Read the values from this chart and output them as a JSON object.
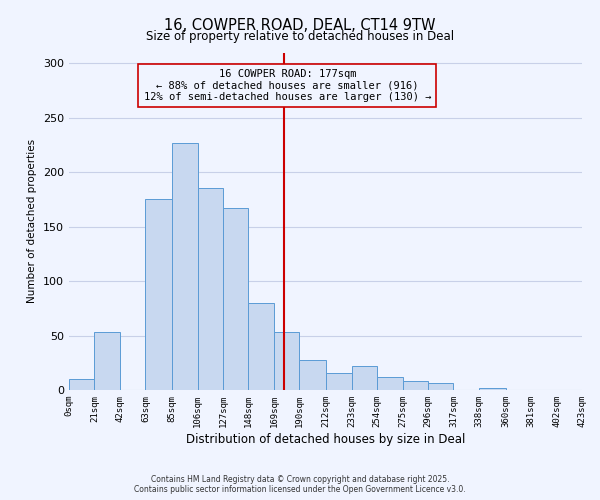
{
  "title": "16, COWPER ROAD, DEAL, CT14 9TW",
  "subtitle": "Size of property relative to detached houses in Deal",
  "xlabel": "Distribution of detached houses by size in Deal",
  "ylabel": "Number of detached properties",
  "bin_edges": [
    0,
    21,
    42,
    63,
    85,
    106,
    127,
    148,
    169,
    190,
    212,
    233,
    254,
    275,
    296,
    317,
    338,
    360,
    381,
    402,
    423
  ],
  "bin_labels": [
    "0sqm",
    "21sqm",
    "42sqm",
    "63sqm",
    "85sqm",
    "106sqm",
    "127sqm",
    "148sqm",
    "169sqm",
    "190sqm",
    "212sqm",
    "233sqm",
    "254sqm",
    "275sqm",
    "296sqm",
    "317sqm",
    "338sqm",
    "360sqm",
    "381sqm",
    "402sqm",
    "423sqm"
  ],
  "counts": [
    10,
    53,
    0,
    175,
    227,
    186,
    167,
    80,
    53,
    28,
    16,
    22,
    12,
    8,
    6,
    0,
    2,
    0,
    0,
    0
  ],
  "bar_facecolor": "#c8d8f0",
  "bar_edgecolor": "#5b9bd5",
  "vline_x": 177,
  "vline_color": "#cc0000",
  "annotation_line1": "16 COWPER ROAD: 177sqm",
  "annotation_line2": "← 88% of detached houses are smaller (916)",
  "annotation_line3": "12% of semi-detached houses are larger (130) →",
  "annotation_box_edgecolor": "#cc0000",
  "ylim": [
    0,
    310
  ],
  "yticks": [
    0,
    50,
    100,
    150,
    200,
    250,
    300
  ],
  "background_color": "#f0f4ff",
  "grid_color": "#c8d0e8",
  "footer_line1": "Contains HM Land Registry data © Crown copyright and database right 2025.",
  "footer_line2": "Contains public sector information licensed under the Open Government Licence v3.0."
}
